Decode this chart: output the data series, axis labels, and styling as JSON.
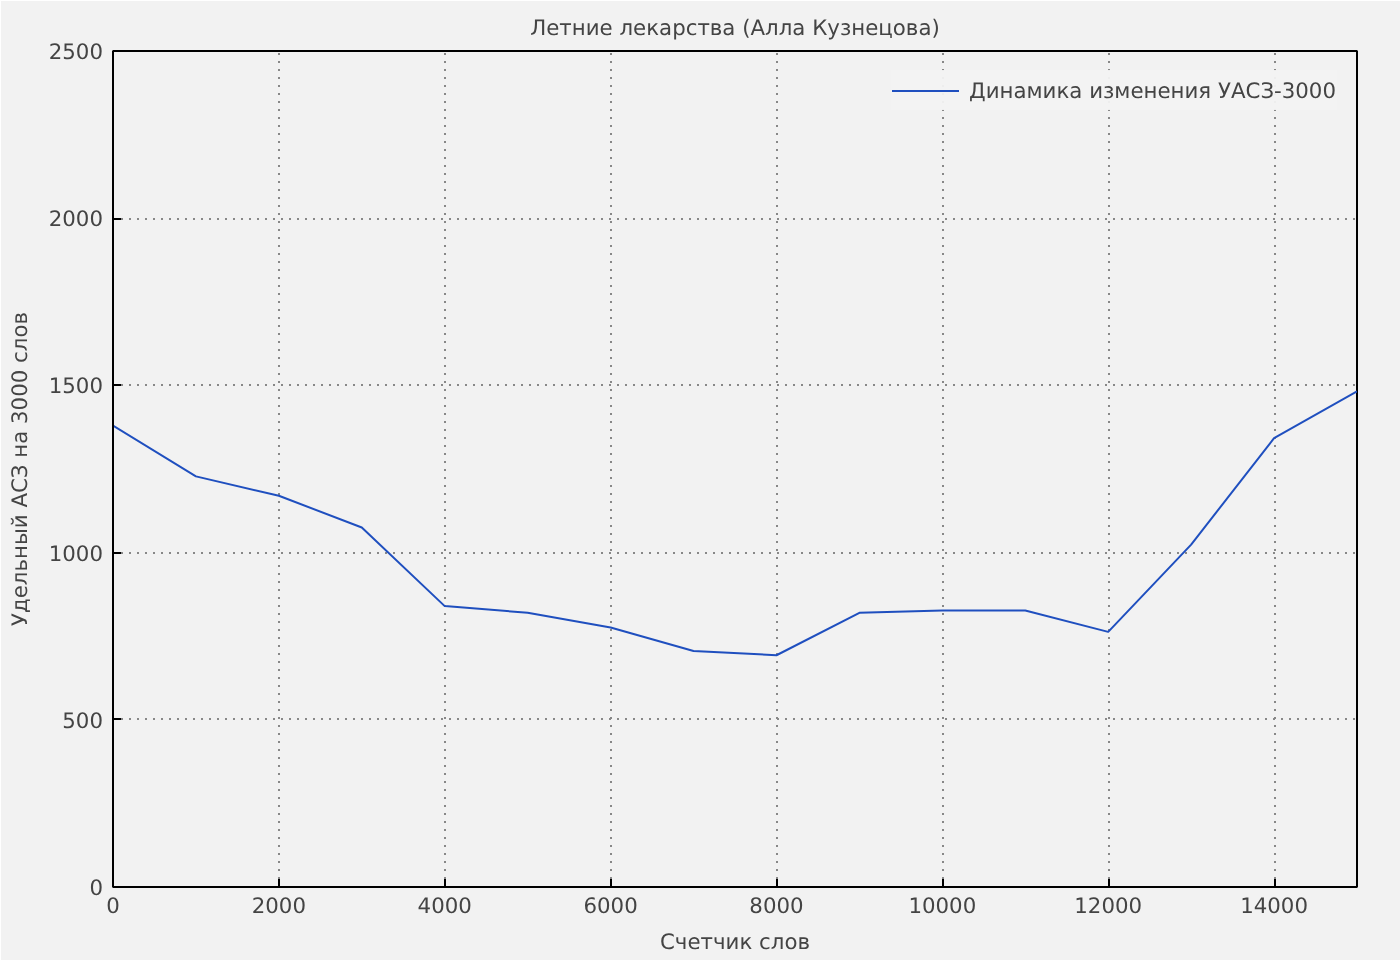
{
  "chart_data": {
    "type": "line",
    "title": "Летние лекарства (Алла Кузнецова)",
    "xlabel": "Счетчик слов",
    "ylabel": "Удельный АСЗ на 3000 слов",
    "x": [
      0,
      1000,
      2000,
      3000,
      4000,
      5000,
      6000,
      7000,
      8000,
      9000,
      10000,
      11000,
      12000,
      13000,
      14000,
      15000
    ],
    "series": [
      {
        "name": "Динамика изменения УАСЗ-3000",
        "color": "#1f4fbf",
        "values": [
          1380,
          1228,
          1170,
          1075,
          840,
          820,
          776,
          706,
          693,
          820,
          827,
          827,
          763,
          1024,
          1342,
          1482
        ]
      }
    ],
    "xlim": [
      0,
      15000
    ],
    "ylim": [
      0,
      2500
    ],
    "xticks": [
      0,
      2000,
      4000,
      6000,
      8000,
      10000,
      12000,
      14000
    ],
    "yticks": [
      0,
      500,
      1000,
      1500,
      2000,
      2500
    ],
    "grid": true,
    "legend": "top right",
    "line_style": "solid",
    "marker": "none"
  }
}
